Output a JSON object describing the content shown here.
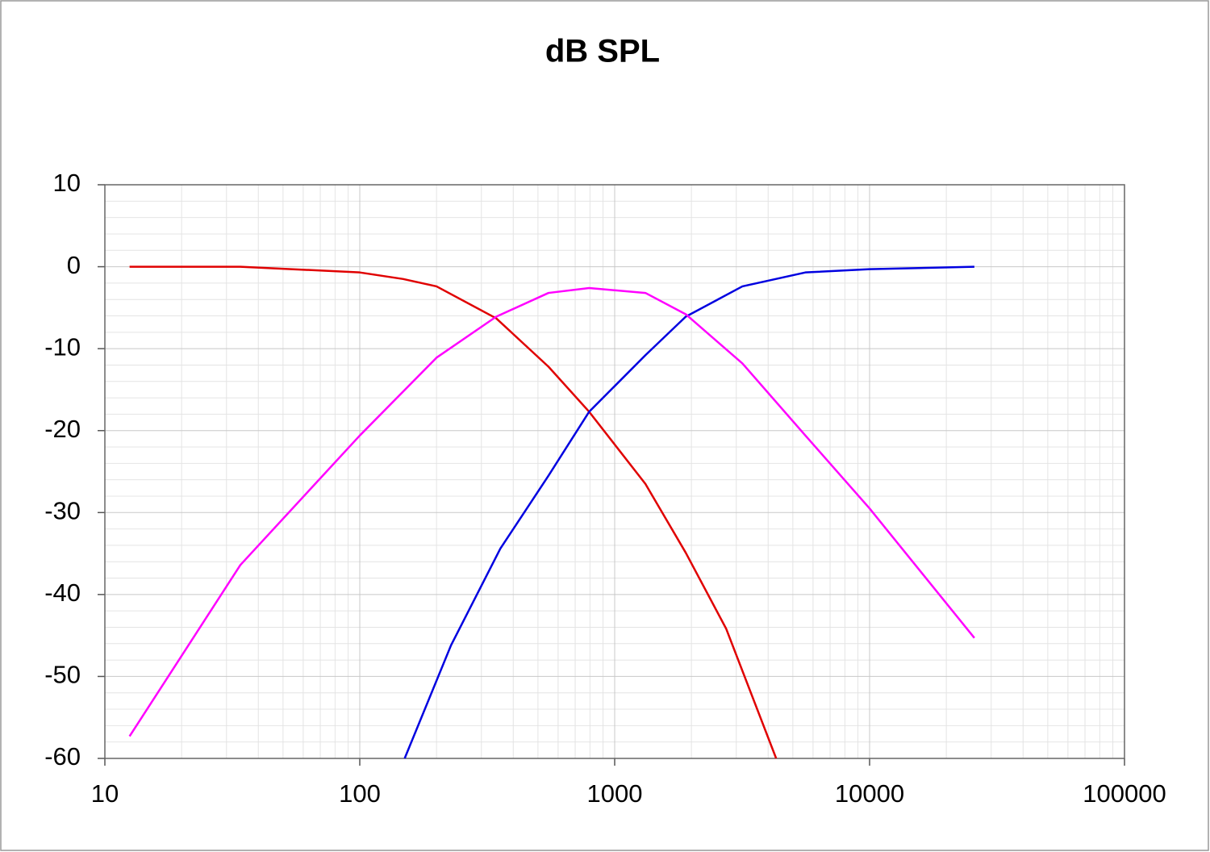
{
  "chart_data": {
    "type": "line",
    "title": "dB SPL",
    "xscale": "log",
    "grid": true,
    "minor_grid": true,
    "xlim": [
      10,
      100000
    ],
    "xticks": [
      10,
      100,
      1000,
      10000,
      100000
    ],
    "ylim": [
      -60,
      10
    ],
    "yticks": [
      10,
      0,
      -10,
      -20,
      -30,
      -40,
      -50,
      -60
    ],
    "series": [
      {
        "color": "#e00000",
        "x": [
          12.5,
          34,
          100,
          148,
          200,
          343,
          550,
          794,
          1320,
          1900,
          2740,
          4300
        ],
        "values": [
          0,
          0,
          -0.7,
          -1.5,
          -2.4,
          -6.3,
          -12.2,
          -17.7,
          -26.5,
          -34.9,
          -44.2,
          -60
        ]
      },
      {
        "color": "#0000e0",
        "x": [
          150,
          228,
          356,
          550,
          794,
          1320,
          1900,
          3170,
          5600,
          10000,
          25770
        ],
        "values": [
          -60,
          -46.2,
          -34.4,
          -25.5,
          -17.7,
          -10.8,
          -6.1,
          -2.4,
          -0.7,
          -0.3,
          0
        ]
      },
      {
        "color": "#ff00ff",
        "x": [
          12.5,
          34,
          100,
          200,
          343,
          550,
          794,
          1320,
          1900,
          3170,
          5600,
          10000,
          25770
        ],
        "values": [
          -57.3,
          -36.4,
          -20.6,
          -11.1,
          -6.1,
          -3.2,
          -2.6,
          -3.2,
          -5.8,
          -11.8,
          -20.6,
          -29.5,
          -45.3
        ]
      }
    ]
  }
}
